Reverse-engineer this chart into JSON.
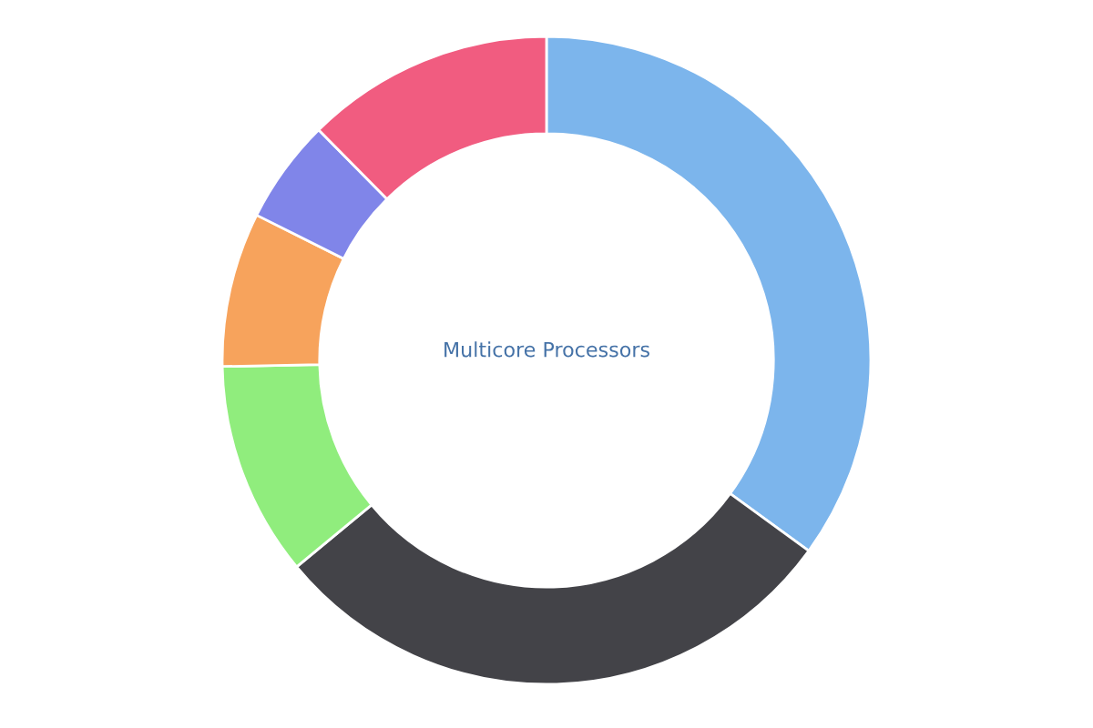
{
  "chart_data": {
    "type": "donut",
    "title": "Multicore Processors",
    "categories": [
      null,
      null,
      null,
      null,
      null,
      null
    ],
    "values": [
      35,
      29,
      10.7,
      7.7,
      5.2,
      12.4
    ],
    "colors": [
      "#7cb5ec",
      "#434348",
      "#90ed7d",
      "#f7a35c",
      "#8085e9",
      "#f15c80"
    ]
  }
}
